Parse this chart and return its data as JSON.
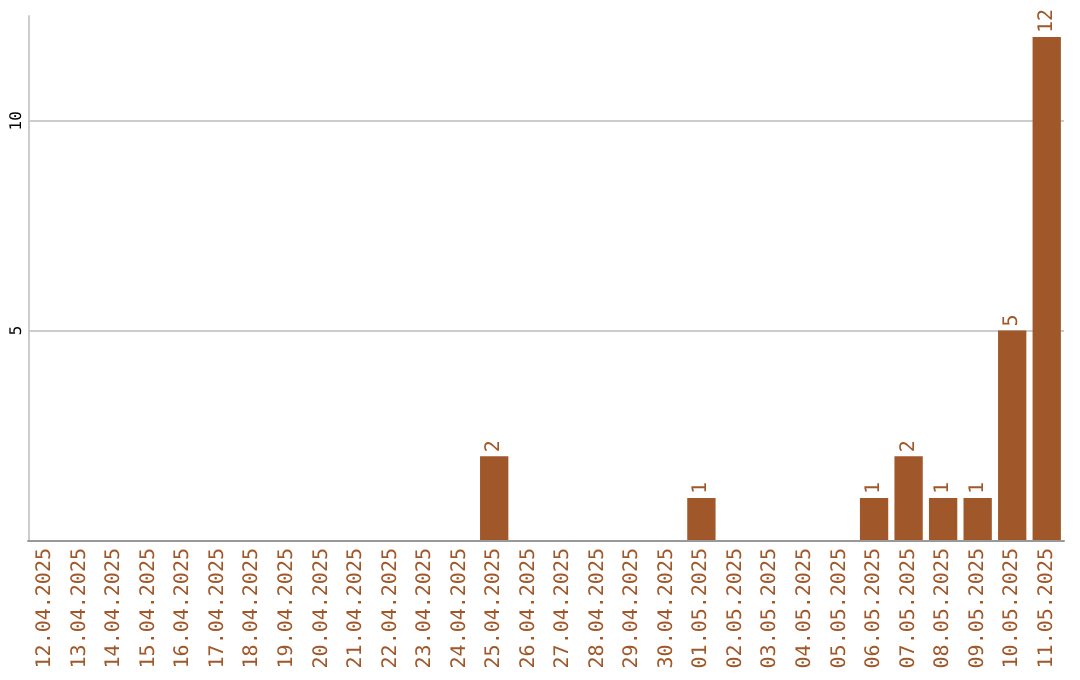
{
  "chart_data": {
    "type": "bar",
    "categories": [
      "12.04.2025",
      "13.04.2025",
      "14.04.2025",
      "15.04.2025",
      "16.04.2025",
      "17.04.2025",
      "18.04.2025",
      "19.04.2025",
      "20.04.2025",
      "21.04.2025",
      "22.04.2025",
      "23.04.2025",
      "24.04.2025",
      "25.04.2025",
      "26.04.2025",
      "27.04.2025",
      "28.04.2025",
      "29.04.2025",
      "30.04.2025",
      "01.05.2025",
      "02.05.2025",
      "03.05.2025",
      "04.05.2025",
      "05.05.2025",
      "06.05.2025",
      "07.05.2025",
      "08.05.2025",
      "09.05.2025",
      "10.05.2025",
      "11.05.2025"
    ],
    "values": [
      0,
      0,
      0,
      0,
      0,
      0,
      0,
      0,
      0,
      0,
      0,
      0,
      0,
      2,
      0,
      0,
      0,
      0,
      0,
      1,
      0,
      0,
      0,
      0,
      1,
      2,
      1,
      1,
      5,
      12
    ],
    "value_labels": [
      null,
      null,
      null,
      null,
      null,
      null,
      null,
      null,
      null,
      null,
      null,
      null,
      null,
      "2",
      null,
      null,
      null,
      null,
      null,
      "1",
      null,
      null,
      null,
      null,
      "1",
      "2",
      "1",
      "1",
      "5",
      "12"
    ],
    "color": "#a0582a",
    "ylim": [
      0,
      12.5
    ],
    "yticks": [
      5,
      10
    ],
    "grid": "y"
  }
}
